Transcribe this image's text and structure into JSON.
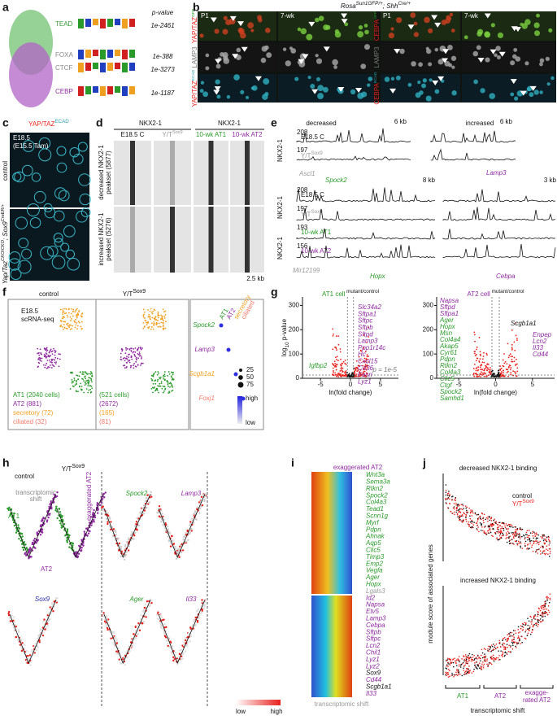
{
  "a": {
    "label": "a",
    "header": "p-value",
    "motifs": [
      {
        "name": "TEAD",
        "p": "1e-2461",
        "color": "#3a9a3a"
      },
      {
        "name": "FOXA",
        "p": "1e-388",
        "color": "#888888"
      },
      {
        "name": "CTCF",
        "p": "1e-3273",
        "color": "#888888"
      },
      {
        "name": "CEBP",
        "p": "1e-1187",
        "color": "#8e2a9e"
      }
    ]
  },
  "b": {
    "label": "b",
    "genotype": [
      "Rosa",
      "Sun1GFP/+",
      "; Shh",
      "Cre/+"
    ],
    "stages": [
      "P1",
      "7-wk",
      "P1",
      "7-wk"
    ],
    "rows_left": [
      [
        "YAP/TAZ",
        "GFP"
      ],
      [
        "LAMP3"
      ],
      [
        "YAP/TAZ",
        "ECAD"
      ]
    ],
    "rows_right": [
      [
        "CEBPA",
        "GFP"
      ],
      [
        "LAMP3"
      ],
      [
        "CEBPA",
        "ECAD"
      ]
    ]
  },
  "c": {
    "label": "c",
    "stain": [
      "YAP/TAZ",
      "ECAD"
    ],
    "age": "E18.5",
    "tam": "(E15.5 Tam)",
    "control": "control",
    "mutant": [
      "Yap/Taz",
      "CKO/CKO",
      "; Sox9",
      "CreER/+"
    ]
  },
  "d": {
    "label": "d",
    "factor": "NKX2-1",
    "columns": [
      "E18.5 C",
      [
        "Y/T",
        "Sox9"
      ],
      "10-wk AT1",
      "10-wk AT2"
    ],
    "sets": [
      [
        "decreased NKX2-1",
        "peakset (5877)"
      ],
      [
        "increased NKX2-1",
        "peakset (5276)"
      ]
    ],
    "scale": "2.5 kb"
  },
  "e": {
    "label": "e",
    "headers": [
      "decreased",
      "increased"
    ],
    "factor": "NKX2-1",
    "scales": [
      "6 kb",
      "6 kb",
      "8 kb",
      "3 kb"
    ],
    "top_tracks": [
      {
        "max": "208",
        "name": "E18.5 C"
      },
      {
        "max": "197",
        "name": [
          "Y/T",
          "Sox9"
        ]
      }
    ],
    "bottom_tracks": [
      {
        "max": "208",
        "name": "E18.5 C"
      },
      {
        "max": "197",
        "name": [
          "Y/T",
          "Sox9"
        ]
      },
      {
        "max": "193",
        "name": "10-wk AT1"
      },
      {
        "max": "156",
        "name": "10-wk AT2"
      }
    ],
    "genes": [
      "Ascl1",
      "Spock2",
      "Lamp3",
      "Mir12199",
      "Hopx",
      "Cebpa"
    ]
  },
  "f": {
    "label": "f",
    "groups": [
      "control",
      [
        "Y/T",
        "Sox9"
      ]
    ],
    "assay": [
      "E18.5",
      "scRNA-seq"
    ],
    "control_counts": [
      "AT1 (2040 cells)",
      "AT2 (881)",
      "secretory (72)",
      "ciliated (32)"
    ],
    "mutant_counts": [
      "(521 cells)",
      "(2672)",
      "(165)",
      "(81)"
    ],
    "cell_types": [
      "AT1",
      "AT2",
      "secretory",
      "ciliated"
    ],
    "genes": [
      "Spock2",
      "Lamp3",
      "Scgb1a1",
      "Foxj1"
    ],
    "sizes": [
      25,
      50,
      75
    ],
    "scale": [
      "high",
      "low"
    ]
  },
  "g": {
    "label": "g",
    "titles": [
      [
        "AT1 cell",
        " mutant/control"
      ],
      [
        "AT2 cell",
        " mutant/control"
      ]
    ],
    "ylabel": [
      "log",
      "10",
      " p-value"
    ],
    "xlabel": "ln(fold change)",
    "threshold": "p = 1e-5",
    "xlim": [
      -8,
      8
    ],
    "ylim": [
      0,
      335
    ],
    "xticks": [
      -5,
      0,
      5
    ],
    "yticks": [
      0,
      100,
      200,
      300
    ],
    "at1_up": [
      "Slc34a2",
      "Sftpa1",
      "Sftpc",
      "Sftpb",
      "Sftpd",
      "Lamp3",
      "Ppp1r14c",
      "Hc",
      "Cxcl15",
      "Cd36",
      "Fasn",
      "Lyz1"
    ],
    "at1_down": [
      "Igfbp2"
    ],
    "at2_top": [
      "Napsa",
      "Sftpd",
      "Sftpa1"
    ],
    "at2_down": [
      "Ager",
      "Hopx",
      "Msn",
      "Col4a4",
      "Akap5",
      "Cyr61",
      "Pdpn",
      "Rtkn2",
      "Col4a3",
      "Clic5",
      "Ctgf",
      "Spock2",
      "Samhd1"
    ],
    "at2_other": "Scgb1a1",
    "at2_up": [
      "Enpep",
      "Lcn2",
      "Il33",
      "Cd44"
    ]
  },
  "h": {
    "label": "h",
    "groups": [
      "control",
      [
        "Y/T",
        "Sox9"
      ]
    ],
    "shift": [
      "transcriptomic",
      "shift"
    ],
    "types": [
      "AT1",
      "AT2",
      "exaggerated AT2"
    ],
    "genes": [
      "Spock2",
      "Lamp3",
      "Sox9",
      "Ager",
      "Il33"
    ],
    "scale": [
      "low",
      "high"
    ]
  },
  "i": {
    "label": "i",
    "top": "exaggerated AT2",
    "axis": "transcriptomic shift",
    "genes": [
      {
        "t": "Wnt3a",
        "c": "#2a9a2a"
      },
      {
        "t": "Sema3a",
        "c": "#2a9a2a"
      },
      {
        "t": "Rtkn2",
        "c": "#2a9a2a"
      },
      {
        "t": "Spock2",
        "c": "#2a9a2a"
      },
      {
        "t": "Col4a3",
        "c": "#2a9a2a"
      },
      {
        "t": "Tead1",
        "c": "#2a9a2a"
      },
      {
        "t": "Scnn1g",
        "c": "#2a9a2a"
      },
      {
        "t": "Myrf",
        "c": "#2a9a2a"
      },
      {
        "t": "Pdpn",
        "c": "#2a9a2a"
      },
      {
        "t": "Ahnak",
        "c": "#2a9a2a"
      },
      {
        "t": "Aqp5",
        "c": "#2a9a2a"
      },
      {
        "t": "Clic5",
        "c": "#2a9a2a"
      },
      {
        "t": "Timp3",
        "c": "#2a9a2a"
      },
      {
        "t": "Emp2",
        "c": "#2a9a2a"
      },
      {
        "t": "Vegfa",
        "c": "#2a9a2a"
      },
      {
        "t": "Ager",
        "c": "#2a9a2a"
      },
      {
        "t": "Hopx",
        "c": "#2a9a2a"
      },
      {
        "t": "Lgals3",
        "c": "#999999"
      },
      {
        "t": "Id2",
        "c": "#8e2a9e"
      },
      {
        "t": "Napsa",
        "c": "#8e2a9e"
      },
      {
        "t": "Etv5",
        "c": "#8e2a9e"
      },
      {
        "t": "Lamp3",
        "c": "#8e2a9e"
      },
      {
        "t": "Cebpa",
        "c": "#8e2a9e"
      },
      {
        "t": "Sftpb",
        "c": "#8e2a9e"
      },
      {
        "t": "Sftpc",
        "c": "#8e2a9e"
      },
      {
        "t": "Lcn2",
        "c": "#8e2a9e"
      },
      {
        "t": "Chil1",
        "c": "#8e2a9e"
      },
      {
        "t": "Lyz1",
        "c": "#8e2a9e"
      },
      {
        "t": "Lyz2",
        "c": "#8e2a9e"
      },
      {
        "t": "Sox9",
        "c": "#111111"
      },
      {
        "t": "Cd44",
        "c": "#8e2a9e"
      },
      {
        "t": "Scgb1a1",
        "c": "#111111"
      },
      {
        "t": "Il33",
        "c": "#8e2a9e"
      }
    ]
  },
  "j": {
    "label": "j",
    "titles": [
      "decreased NKX2-1 binding",
      "increased NKX2-1 binding"
    ],
    "legend": [
      "control",
      [
        "Y/T",
        "Sox9"
      ]
    ],
    "ylabel": "module score of associated genes",
    "xlabel": "transcriptomic shift",
    "stages": [
      "AT1",
      "AT2",
      "exagge-",
      "rated AT2"
    ]
  }
}
